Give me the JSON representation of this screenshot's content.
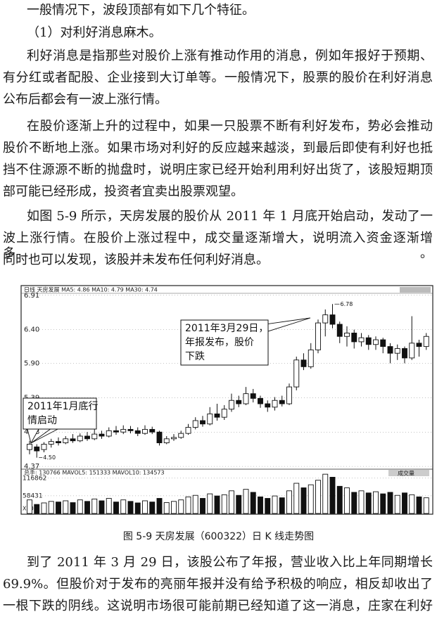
{
  "paragraphs": [
    [
      "一般情况下，波段顶部有如下几个特征。"
    ],
    [
      "（1）对利好消息麻木。"
    ],
    [
      "利好消息是指那些对股价上涨有推动作用的消息，例如年报好于预期、",
      "有分红或者配股、企业接到大订单等。一般情况下，股票的股价在利好消息",
      "公布后都会有一波上涨行情。"
    ],
    [
      "在股价逐渐上升的过程中，如果一只股票不断有利好发布，势必会推动",
      "股价不断地上涨。如果市场对利好的反应越来越淡，到最后即使有利好也抵",
      "挡不住源源不断的抛盘时，说明庄家已经开始利用利好出货了，该股短期顶",
      "部可能已经形成，投资者宜卖出股票观望。"
    ],
    [
      "如图 5-9 所示，天房发展的股价从 2011 年 1 月底开始启动，发动了一",
      "波上涨行情。在股价上涨过程中，成交量逐渐增大，说明流入资金逐渐增多。",
      "同时也可以发现，该股并未发布任何利好消息。"
    ]
  ],
  "figure": {
    "header": "日线  天房发展  MA5: 4.86  MA10: 4.79  MA30: 4.74",
    "ylim": [
      4.35,
      6.95
    ],
    "yticks": [
      6.91,
      {
        "value": 6.4,
        "label": "6.40"
      },
      {
        "value": 5.9,
        "label": "5.90"
      },
      5.39,
      4.88,
      4.37
    ],
    "peak_label": 6.78,
    "low_label": {
      "value": 4.5,
      "label": "4.50"
    },
    "callouts": [
      [
        "2011年3月29日，",
        "年报发布，股价",
        "下跌"
      ],
      [
        "2011年1月底行",
        "情启动"
      ]
    ],
    "candles": {
      "open": [
        4.62,
        4.66,
        4.62,
        4.7,
        4.74,
        4.72,
        4.78,
        4.75,
        4.82,
        4.78,
        4.85,
        4.82,
        4.9,
        4.88,
        4.92,
        4.9,
        4.86,
        4.92,
        4.88,
        4.72,
        4.78,
        4.8,
        4.86,
        4.95,
        5.05,
        5.0,
        5.15,
        5.1,
        5.22,
        5.35,
        5.3,
        5.45,
        5.38,
        5.3,
        5.25,
        5.35,
        5.3,
        5.55,
        5.95,
        5.85,
        6.1,
        6.5,
        6.62,
        6.48,
        6.3,
        6.35,
        6.22,
        6.28,
        6.18,
        6.25,
        6.15,
        6.05,
        6.12,
        5.98,
        6.2,
        6.15
      ],
      "close": [
        4.7,
        4.6,
        4.7,
        4.74,
        4.72,
        4.78,
        4.75,
        4.82,
        4.78,
        4.85,
        4.82,
        4.9,
        4.88,
        4.92,
        4.9,
        4.86,
        4.92,
        4.88,
        4.72,
        4.78,
        4.8,
        4.86,
        4.95,
        5.05,
        5.0,
        5.15,
        5.1,
        5.22,
        5.35,
        5.3,
        5.45,
        5.38,
        5.3,
        5.25,
        5.35,
        5.3,
        5.55,
        5.95,
        5.85,
        6.1,
        6.5,
        6.62,
        6.48,
        6.3,
        6.35,
        6.22,
        6.28,
        6.18,
        6.25,
        6.15,
        6.05,
        6.12,
        5.98,
        6.2,
        6.15,
        6.3
      ],
      "high": [
        4.75,
        4.7,
        4.73,
        4.78,
        4.8,
        4.82,
        4.85,
        4.86,
        4.88,
        4.95,
        4.9,
        4.95,
        4.97,
        4.98,
        4.97,
        4.95,
        4.98,
        4.96,
        4.9,
        4.82,
        4.85,
        4.9,
        5.0,
        5.1,
        5.12,
        5.25,
        5.3,
        5.28,
        5.45,
        5.42,
        5.55,
        5.52,
        5.42,
        5.35,
        5.4,
        5.42,
        5.6,
        6.0,
        6.05,
        6.2,
        6.55,
        6.7,
        6.78,
        6.52,
        6.45,
        6.4,
        6.35,
        6.32,
        6.3,
        6.28,
        6.2,
        6.18,
        6.15,
        6.6,
        6.25,
        6.35
      ],
      "low": [
        4.55,
        4.5,
        4.58,
        4.65,
        4.68,
        4.7,
        4.72,
        4.73,
        4.75,
        4.76,
        4.78,
        4.8,
        4.84,
        4.85,
        4.86,
        4.82,
        4.84,
        4.85,
        4.68,
        4.7,
        4.75,
        4.78,
        4.84,
        4.92,
        4.96,
        4.98,
        5.05,
        5.06,
        5.18,
        5.25,
        5.28,
        5.32,
        5.24,
        5.18,
        5.2,
        5.26,
        5.28,
        5.5,
        5.8,
        5.82,
        6.05,
        6.3,
        6.42,
        6.2,
        6.15,
        6.12,
        6.15,
        6.1,
        6.1,
        6.05,
        5.9,
        5.95,
        5.9,
        5.95,
        6.0,
        6.1
      ]
    },
    "volume_header": "总手: 130766  MAVOL5: 151333  MAVOL10: 134573",
    "volume_tag": "成交量",
    "vlim": [
      0,
      135000
    ],
    "vticks": [
      116862,
      58431
    ],
    "volume_unit": "X10",
    "volumes": [
      45000,
      30000,
      35000,
      40000,
      38000,
      42000,
      36000,
      45000,
      40000,
      48000,
      42000,
      50000,
      38000,
      45000,
      40000,
      35000,
      42000,
      38000,
      50000,
      36000,
      40000,
      45000,
      55000,
      60000,
      50000,
      65000,
      58000,
      62000,
      75000,
      60000,
      80000,
      70000,
      55000,
      50000,
      58000,
      52000,
      75000,
      100000,
      85000,
      95000,
      110000,
      130000,
      120000,
      90000,
      85000,
      70000,
      75000,
      68000,
      72000,
      65000,
      70000,
      60000,
      68000,
      62000,
      55000,
      52000
    ],
    "caption": "图 5-9  天房发展（600322）日 K 线走势图"
  },
  "after_paragraphs": [
    [
      "到了 2011 年 3 月 29 日，该股公布了年报，营业收入比上年同期增长",
      "69.9%。但股价对于发布的亮丽年报并没有给予积极的响应，相反却收出了",
      "一根下跌的阴线。这说明市场很可能前期已经知道了这一消息，庄家在利好"
    ]
  ]
}
